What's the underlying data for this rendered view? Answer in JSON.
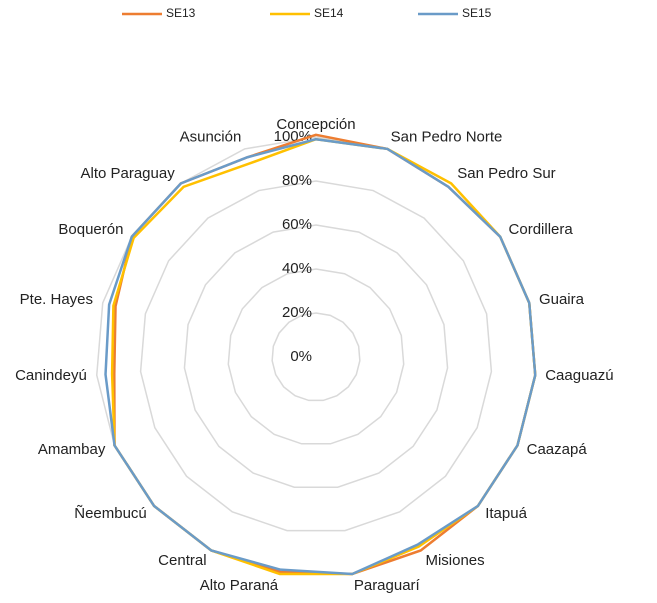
{
  "chart_data": {
    "type": "radar",
    "categories": [
      "Concepción",
      "San Pedro Norte",
      "San Pedro Sur",
      "Cordillera",
      "Guaira",
      "Caaguazú",
      "Caazapá",
      "Itapuá",
      "Misiones",
      "Paraguarí",
      "Alto Paraná",
      "Central",
      "Ñeembucú",
      "Amambay",
      "Canindeyú",
      "Pte. Hayes",
      "Boquerón",
      "Alto Paraguay",
      "Asunción"
    ],
    "series": [
      {
        "name": "SE13",
        "color": "#ed7d31",
        "values": [
          101,
          100,
          98,
          100,
          100,
          100,
          100,
          100,
          100,
          100,
          99,
          100,
          100,
          100,
          92,
          94,
          100,
          100,
          96
        ]
      },
      {
        "name": "SE14",
        "color": "#ffc000",
        "values": [
          99,
          100,
          100,
          100,
          100,
          100,
          100,
          100,
          98,
          100,
          100,
          100,
          100,
          100,
          93,
          95,
          99,
          98,
          93
        ]
      },
      {
        "name": "SE15",
        "color": "#6a9bc8",
        "values": [
          99,
          100,
          98,
          100,
          100,
          100,
          100,
          100,
          97,
          100,
          98,
          100,
          100,
          100,
          96,
          97,
          100,
          100,
          96
        ]
      }
    ],
    "ylim": [
      0,
      100
    ],
    "yticks": [
      {
        "value": 0,
        "label": "0%"
      },
      {
        "value": 20,
        "label": "20%"
      },
      {
        "value": 40,
        "label": "40%"
      },
      {
        "value": 60,
        "label": "60%"
      },
      {
        "value": 80,
        "label": "80%"
      },
      {
        "value": 100,
        "label": "100%"
      }
    ],
    "grid": true
  }
}
